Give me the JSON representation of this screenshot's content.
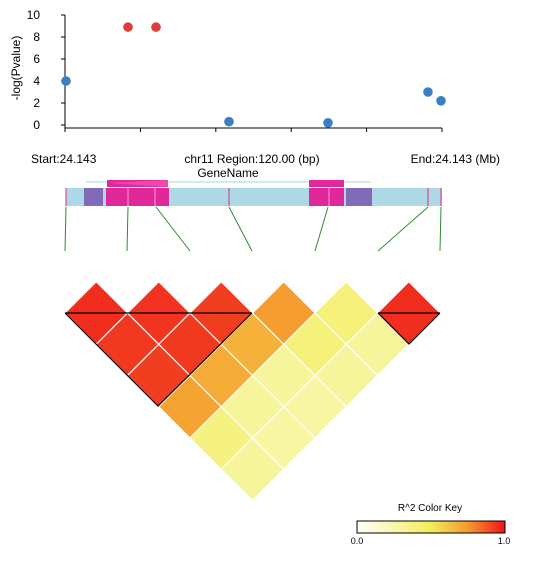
{
  "chart_data": {
    "type": "scatter",
    "ylabel": "-log(Pvalue)",
    "ylim": [
      0,
      10
    ],
    "yticks": [
      "0",
      "2",
      "4",
      "6",
      "8",
      "10"
    ],
    "region": {
      "start_label": "Start:24.143",
      "center_label": "chr11 Region:120.00 (bp)",
      "end_label": "End:24.143 (Mb)",
      "gene_name": "GeneName"
    },
    "snp_count": 7,
    "points": [
      {
        "snp": 1,
        "y": 4.0,
        "color": "#3a7fc1"
      },
      {
        "snp": 2,
        "y": 8.9,
        "color": "#d9403a"
      },
      {
        "snp": 3,
        "y": 8.9,
        "color": "#d9403a"
      },
      {
        "snp": 4,
        "y": 0.3,
        "color": "#3a7fc1"
      },
      {
        "snp": 5,
        "y": 0.2,
        "color": "#3a7fc1"
      },
      {
        "snp": 6,
        "y": 3.0,
        "color": "#3a7fc1"
      },
      {
        "snp": 7,
        "y": 2.2,
        "color": "#3a7fc1"
      }
    ],
    "ld_r2": [
      [
        0.95,
        0.93,
        0.92,
        0.72,
        0.38,
        0.3
      ],
      [
        0.94,
        0.93,
        0.7,
        0.3,
        0.28
      ],
      [
        0.92,
        0.68,
        0.3,
        0.28
      ],
      [
        0.74,
        0.4,
        0.3
      ],
      [
        0.4,
        0.3
      ],
      [
        0.95
      ]
    ],
    "color_key": {
      "title": "R^2 Color Key",
      "min_label": "0.0",
      "max_label": "1.0"
    }
  }
}
